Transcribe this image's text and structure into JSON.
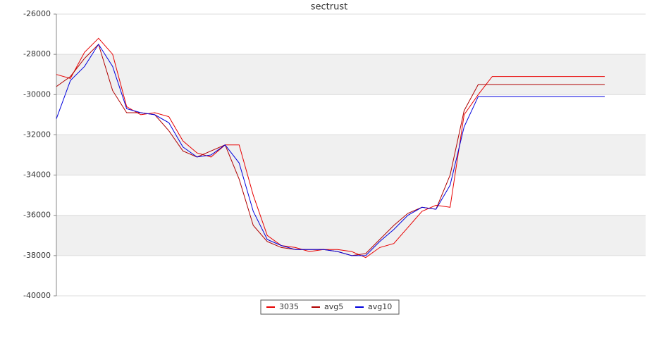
{
  "chart_data": {
    "type": "line",
    "title": "sectrust",
    "series": [
      {
        "name": "3035",
        "color": "#e80000",
        "values": [
          -29000,
          -29200,
          -27900,
          -27200,
          -28000,
          -30600,
          -31000,
          -30900,
          -31100,
          -32300,
          -32900,
          -33100,
          -32500,
          -32500,
          -35000,
          -37000,
          -37500,
          -37600,
          -37800,
          -37700,
          -37700,
          -37800,
          -38100,
          -37600,
          -37400,
          -36600,
          -35800,
          -35500,
          -35600,
          -31000,
          -30000,
          -29100,
          -29100,
          -29100,
          -29100,
          -29100,
          -29100,
          -29100,
          -29100,
          -29100
        ]
      },
      {
        "name": "avg5",
        "color": "#b00000",
        "values": [
          -29600,
          -29100,
          -28200,
          -27500,
          -29800,
          -30900,
          -30900,
          -31000,
          -31800,
          -32800,
          -33100,
          -32800,
          -32500,
          -34200,
          -36500,
          -37300,
          -37600,
          -37700,
          -37700,
          -37700,
          -37800,
          -38000,
          -37900,
          -37200,
          -36500,
          -35900,
          -35600,
          -35700,
          -34000,
          -30800,
          -29500,
          -29500,
          -29500,
          -29500,
          -29500,
          -29500,
          -29500,
          -29500,
          -29500,
          -29500
        ]
      },
      {
        "name": "avg10",
        "color": "#0000dd",
        "values": [
          -31200,
          -29300,
          -28600,
          -27500,
          -28600,
          -30700,
          -30900,
          -31000,
          -31400,
          -32600,
          -33100,
          -33000,
          -32500,
          -33400,
          -35800,
          -37200,
          -37500,
          -37700,
          -37700,
          -37700,
          -37800,
          -38000,
          -38000,
          -37300,
          -36700,
          -36000,
          -35600,
          -35700,
          -34500,
          -31600,
          -30100,
          -30100,
          -30100,
          -30100,
          -30100,
          -30100,
          -30100,
          -30100,
          -30100,
          -30100
        ]
      }
    ],
    "ylim": [
      -40000,
      -26000
    ],
    "yticks": [
      -40000,
      -38000,
      -36000,
      -34000,
      -32000,
      -30000,
      -28000,
      -26000
    ],
    "grid": true
  }
}
